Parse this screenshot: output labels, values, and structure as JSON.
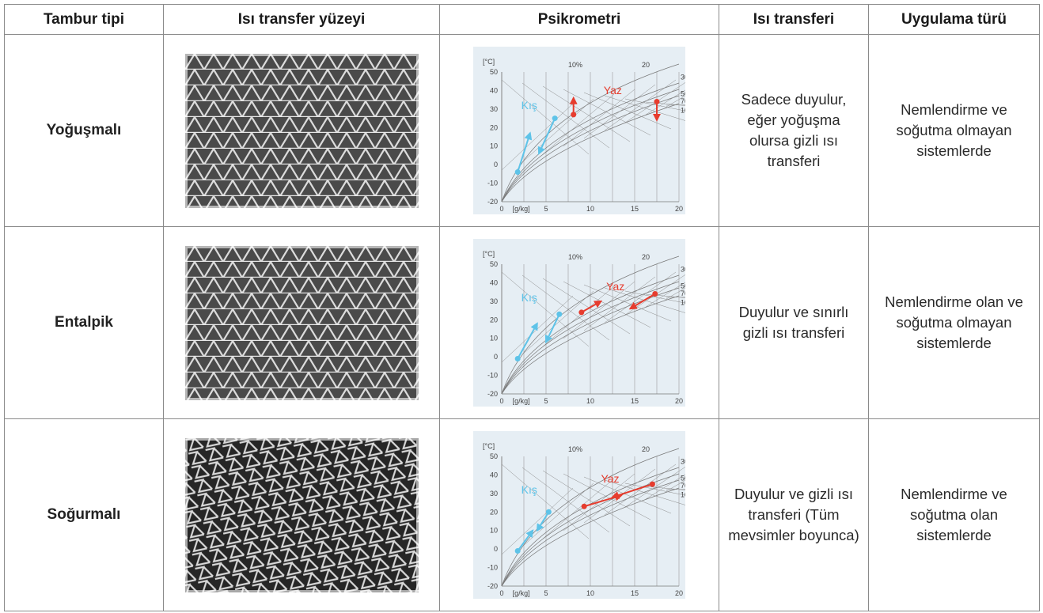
{
  "headers": {
    "drum_type": "Tambur tipi",
    "surface": "Isı transfer yüzeyi",
    "psychrometry": "Psikrometri",
    "heat_transfer": "Isı transferi",
    "application": "Uygulama türü"
  },
  "chart_labels": {
    "unit_c": "[°C]",
    "unit_gkg": "[g/kg]",
    "rh_10": "10%",
    "rh_20": "20",
    "rh_30": "30",
    "rh_50": "50",
    "rh_70": "70",
    "rh_100": "100",
    "y_ticks": [
      "50",
      "40",
      "30",
      "20",
      "10",
      "0",
      "-10",
      "-20"
    ],
    "x_ticks": [
      "0",
      "5",
      "10",
      "15",
      "20"
    ],
    "winter": "Kış",
    "summer": "Yaz"
  },
  "colors": {
    "winter": "#5ec3e8",
    "summer": "#e63c2e",
    "chart_bg": "#e6eef4"
  },
  "rows": [
    {
      "type": "Yoğuşmalı",
      "pattern": "triangle",
      "heat_transfer": "Sadece duyulur, eğer yoğuşma olursa gizli ısı transferi",
      "application": "Nemlendirme ve soğutma olmayan sistemlerde"
    },
    {
      "type": "Entalpik",
      "pattern": "triangle",
      "heat_transfer": "Duyulur ve sınırlı gizli ısı transferi",
      "application": "Nemlendirme olan ve soğutma olmayan sistemlerde"
    },
    {
      "type": "Soğurmalı",
      "pattern": "zigzag",
      "heat_transfer": "Duyulur ve gizli ısı transferi (Tüm mevsimler boyunca)",
      "application": "Nemlendirme ve soğutma olan sistemlerde"
    }
  ]
}
